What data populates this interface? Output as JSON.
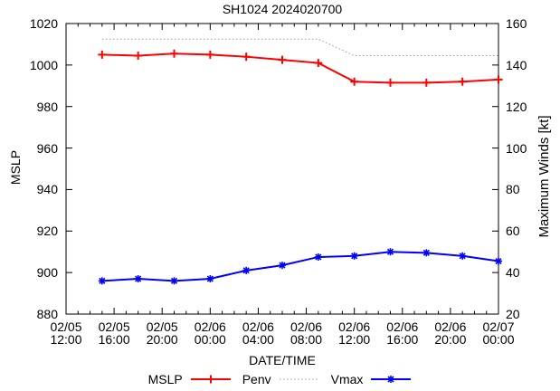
{
  "title": "SH1024 2024020700",
  "axes": {
    "x_label": "DATE/TIME",
    "y_left_label": "MSLP",
    "y_right_label": "Maximum Winds [kt]"
  },
  "legend": [
    {
      "label": "MSLP"
    },
    {
      "label": "Penv"
    },
    {
      "label": "Vmax"
    }
  ],
  "colors": {
    "mslp": "#ff0000",
    "penv": "#999999",
    "vmax": "#0000ff",
    "axis": "#000000"
  },
  "chart_data": {
    "type": "line",
    "title": "SH1024 2024020700",
    "xlabel": "DATE/TIME",
    "ylabel_left": "MSLP",
    "ylabel_right": "Maximum Winds [kt]",
    "xlim_hours": [
      0,
      36
    ],
    "x_minor_step_hours": 1,
    "x_major_step_hours": 4,
    "x_tick_labels": [
      [
        "02/05",
        "12:00"
      ],
      [
        "02/05",
        "16:00"
      ],
      [
        "02/05",
        "20:00"
      ],
      [
        "02/06",
        "00:00"
      ],
      [
        "02/06",
        "04:00"
      ],
      [
        "02/06",
        "08:00"
      ],
      [
        "02/06",
        "12:00"
      ],
      [
        "02/06",
        "16:00"
      ],
      [
        "02/06",
        "20:00"
      ],
      [
        "02/07",
        "00:00"
      ]
    ],
    "ylim_left": [
      880,
      1020
    ],
    "ylim_right": [
      20,
      160
    ],
    "y_tick_step": 20,
    "y_tick_labels_left": [
      "880",
      "900",
      "920",
      "940",
      "960",
      "980",
      "1000",
      "1020"
    ],
    "y_tick_labels_right": [
      "20",
      "40",
      "60",
      "80",
      "100",
      "120",
      "140",
      "160"
    ],
    "grid": false,
    "legend_position": "bottom-center",
    "x_hours": [
      3,
      6,
      9,
      12,
      15,
      18,
      21,
      24,
      27,
      30,
      33,
      36
    ],
    "series": [
      {
        "name": "Penv",
        "axis": "left",
        "color": "#999999",
        "line": "dotted",
        "marker": "none",
        "width": 1,
        "values": [
          1012.5,
          1012.5,
          1012.5,
          1012.5,
          1012.5,
          1012.5,
          1012.5,
          1004.5,
          1004.5,
          1004.5,
          1004.5,
          1004.5
        ]
      },
      {
        "name": "MSLP",
        "axis": "left",
        "color": "#ff0000",
        "line": "solid",
        "marker": "plus",
        "width": 2,
        "values": [
          1005,
          1004.5,
          1005.5,
          1005,
          1004,
          1002.5,
          1001,
          992,
          991.5,
          991.5,
          992,
          993
        ]
      },
      {
        "name": "Vmax",
        "axis": "right",
        "color": "#0000ff",
        "line": "solid",
        "marker": "star",
        "width": 2,
        "values": [
          36,
          37,
          36,
          37,
          41,
          43.5,
          47.5,
          48,
          50,
          49.5,
          48,
          45.5
        ]
      }
    ]
  }
}
